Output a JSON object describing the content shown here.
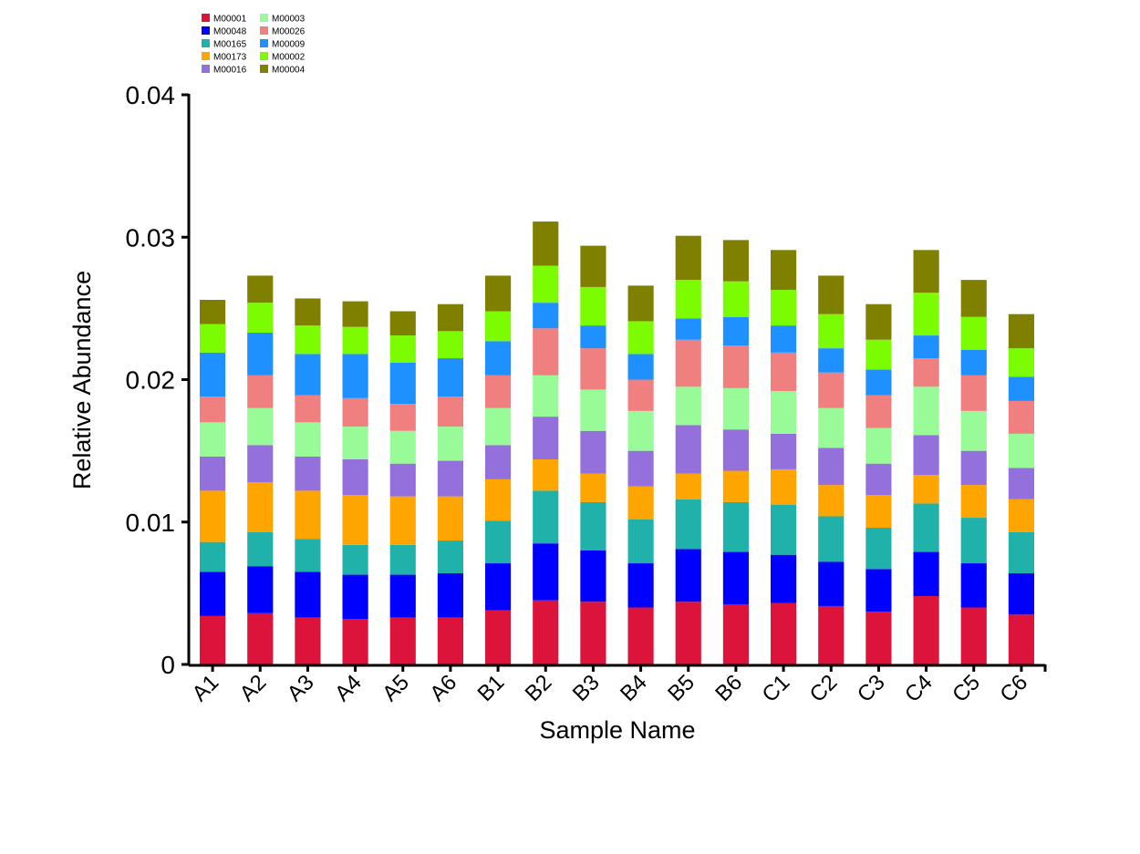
{
  "chart_data": {
    "type": "bar",
    "stacked": true,
    "title": "",
    "xlabel": "Sample Name",
    "ylabel": "Relative Abundance",
    "ylim": [
      0,
      0.04
    ],
    "yticks": [
      0,
      0.01,
      0.02,
      0.03,
      0.04
    ],
    "ytick_labels": [
      "0",
      "0.01",
      "0.02",
      "0.03",
      "0.04"
    ],
    "grid": false,
    "legend_position": "top-left",
    "categories": [
      "A1",
      "A2",
      "A3",
      "A4",
      "A5",
      "A6",
      "B1",
      "B2",
      "B3",
      "B4",
      "B5",
      "B6",
      "C1",
      "C2",
      "C3",
      "C4",
      "C5",
      "C6"
    ],
    "series": [
      {
        "name": "M00001",
        "color": "#dc143c",
        "values": [
          0.0034,
          0.0036,
          0.0033,
          0.0032,
          0.0033,
          0.0033,
          0.0038,
          0.0045,
          0.0044,
          0.004,
          0.0044,
          0.0042,
          0.0043,
          0.0041,
          0.0037,
          0.0048,
          0.004,
          0.0035
        ]
      },
      {
        "name": "M00048",
        "color": "#0000ff",
        "values": [
          0.0031,
          0.0033,
          0.0032,
          0.0031,
          0.003,
          0.0031,
          0.0033,
          0.004,
          0.0036,
          0.0031,
          0.0037,
          0.0037,
          0.0034,
          0.0031,
          0.003,
          0.0031,
          0.0031,
          0.0029
        ]
      },
      {
        "name": "M00165",
        "color": "#20b2aa",
        "values": [
          0.0021,
          0.0024,
          0.0023,
          0.0021,
          0.0021,
          0.0023,
          0.003,
          0.0037,
          0.0034,
          0.0031,
          0.0035,
          0.0035,
          0.0035,
          0.0032,
          0.0029,
          0.0034,
          0.0032,
          0.0029
        ]
      },
      {
        "name": "M00173",
        "color": "#ffa500",
        "values": [
          0.0036,
          0.0035,
          0.0034,
          0.0035,
          0.0034,
          0.0031,
          0.0029,
          0.0022,
          0.002,
          0.0023,
          0.0018,
          0.0022,
          0.0025,
          0.0022,
          0.0023,
          0.002,
          0.0023,
          0.0023
        ]
      },
      {
        "name": "M00016",
        "color": "#9370db",
        "values": [
          0.0024,
          0.0026,
          0.0024,
          0.0025,
          0.0023,
          0.0025,
          0.0024,
          0.003,
          0.003,
          0.0025,
          0.0034,
          0.0029,
          0.0025,
          0.0026,
          0.0022,
          0.0028,
          0.0024,
          0.0022
        ]
      },
      {
        "name": "M00003",
        "color": "#98fb98",
        "values": [
          0.0024,
          0.0026,
          0.0024,
          0.0023,
          0.0023,
          0.0024,
          0.0026,
          0.0029,
          0.0029,
          0.0028,
          0.0027,
          0.0029,
          0.003,
          0.0028,
          0.0025,
          0.0034,
          0.0028,
          0.0024
        ]
      },
      {
        "name": "M00026",
        "color": "#f08080",
        "values": [
          0.0018,
          0.0023,
          0.0019,
          0.002,
          0.0019,
          0.0021,
          0.0023,
          0.0033,
          0.0029,
          0.0022,
          0.0033,
          0.003,
          0.0027,
          0.0025,
          0.0023,
          0.002,
          0.0025,
          0.0023
        ]
      },
      {
        "name": "M00009",
        "color": "#1e90ff",
        "values": [
          0.0031,
          0.003,
          0.0029,
          0.0031,
          0.0029,
          0.0027,
          0.0024,
          0.0018,
          0.0016,
          0.0018,
          0.0015,
          0.002,
          0.0019,
          0.0017,
          0.0018,
          0.0016,
          0.0018,
          0.0017
        ]
      },
      {
        "name": "M00002",
        "color": "#7cfc00",
        "values": [
          0.002,
          0.0021,
          0.002,
          0.0019,
          0.0019,
          0.0019,
          0.0021,
          0.0026,
          0.0027,
          0.0023,
          0.0027,
          0.0025,
          0.0025,
          0.0024,
          0.0021,
          0.003,
          0.0023,
          0.002
        ]
      },
      {
        "name": "M00004",
        "color": "#808000",
        "values": [
          0.0017,
          0.0019,
          0.0019,
          0.0018,
          0.0017,
          0.0019,
          0.0025,
          0.0031,
          0.0029,
          0.0025,
          0.0031,
          0.0029,
          0.0028,
          0.0027,
          0.0025,
          0.003,
          0.0026,
          0.0024
        ]
      }
    ]
  }
}
